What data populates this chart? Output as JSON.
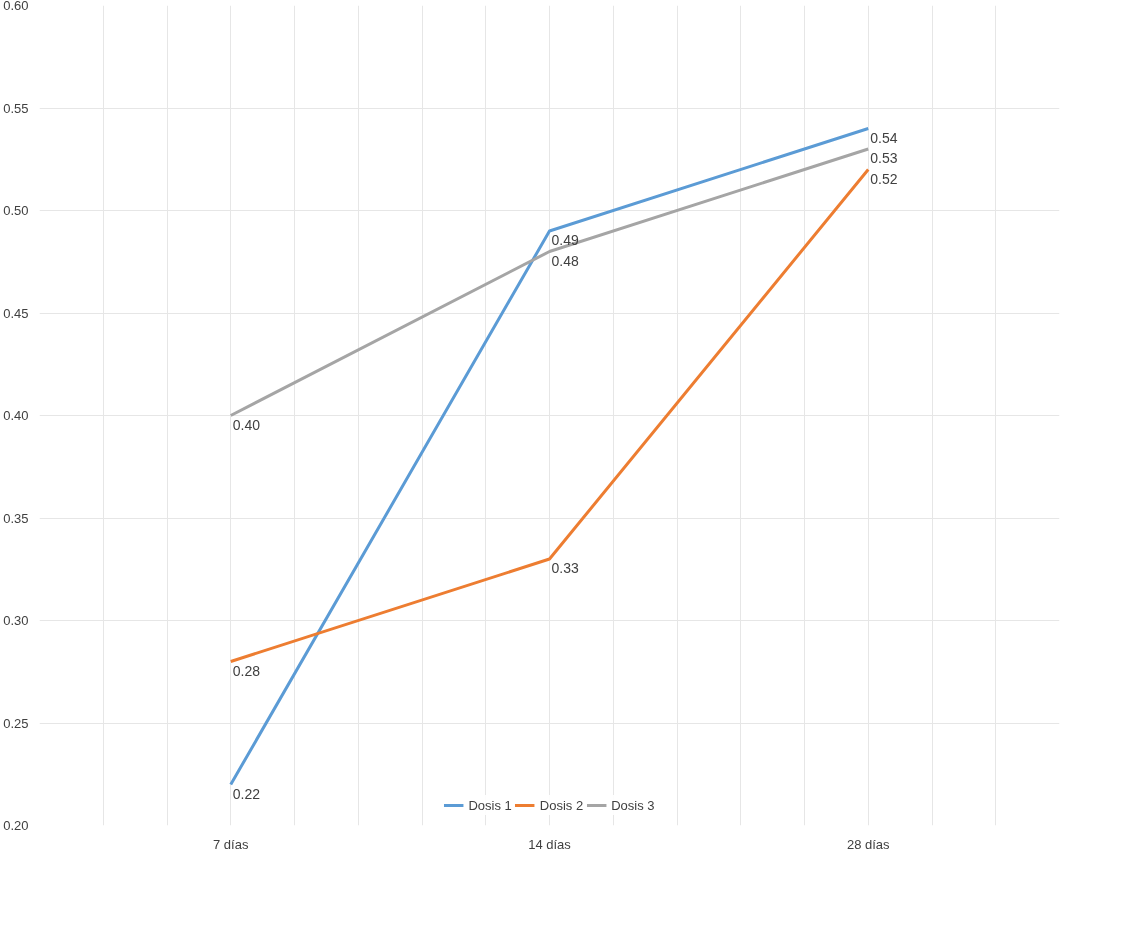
{
  "chart_data": {
    "type": "line",
    "categories": [
      "7 días",
      "14 días",
      "28 días"
    ],
    "series": [
      {
        "name": "Dosis 1",
        "color": "#5b9bd5",
        "values": [
          0.22,
          0.49,
          0.54
        ],
        "value_labels": [
          "0.22",
          "0.49",
          "0.54"
        ]
      },
      {
        "name": "Dosis 2",
        "color": "#ed7d31",
        "values": [
          0.28,
          0.33,
          0.52
        ],
        "value_labels": [
          "0.28",
          "0.33",
          "0.52"
        ]
      },
      {
        "name": "Dosis 3",
        "color": "#a5a5a5",
        "values": [
          0.4,
          0.48,
          0.53
        ],
        "value_labels": [
          "0.40",
          "0.48",
          "0.53"
        ]
      }
    ],
    "ylim": [
      0.2,
      0.6
    ],
    "yticks": [
      {
        "value": 0.2,
        "label": "0.20"
      },
      {
        "value": 0.25,
        "label": "0.25"
      },
      {
        "value": 0.3,
        "label": "0.30"
      },
      {
        "value": 0.35,
        "label": "0.35"
      },
      {
        "value": 0.4,
        "label": "0.40"
      },
      {
        "value": 0.45,
        "label": "0.45"
      },
      {
        "value": 0.5,
        "label": "0.50"
      },
      {
        "value": 0.55,
        "label": "0.55"
      },
      {
        "value": 0.6,
        "label": "0.60"
      }
    ],
    "grid": true,
    "legend": "bottom",
    "marker": "none",
    "line_style": "solid"
  }
}
